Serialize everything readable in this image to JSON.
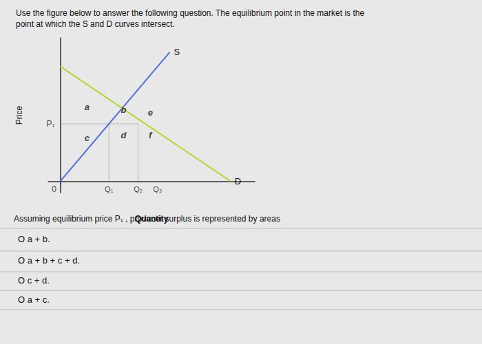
{
  "chart_data": {
    "type": "line",
    "title": [
      "Use the figure below to answer the following question. The equilibrium point in the market is the",
      "point at which the S and D curves intersect."
    ],
    "x_label": "Quantity",
    "y_label": "Price",
    "xlim": [
      -0.5,
      8.0
    ],
    "ylim": [
      -0.8,
      10.0
    ],
    "xticks": [],
    "yticks": [],
    "tick_labels": false,
    "grid": false,
    "series": [
      {
        "name": "S",
        "x": [
          0,
          4.5
        ],
        "values": [
          0,
          9
        ]
      },
      {
        "name": "D",
        "x": [
          0,
          7.0
        ],
        "values": [
          8,
          0
        ]
      }
    ],
    "guides": {
      "line_style": "dotted",
      "segments": [
        {
          "x": [
            0,
            3.2
          ],
          "y": [
            4.0,
            4.0
          ]
        },
        {
          "x": [
            2.0,
            2.0
          ],
          "y": [
            0,
            4.0
          ]
        },
        {
          "x": [
            3.2,
            3.2
          ],
          "y": [
            0,
            4.0
          ]
        }
      ]
    },
    "price_level": {
      "value": 4.0,
      "label": "P₁"
    },
    "quantity_levels": [
      {
        "value": 2.0,
        "label": "Q₁"
      },
      {
        "value": 3.2,
        "label": "Q₂"
      },
      {
        "value": 4.0,
        "label": "Q₃"
      }
    ],
    "origin_label": "0",
    "region_labels": [
      {
        "text": "a",
        "x": 1.1,
        "y": 5.2
      },
      {
        "text": "b",
        "x": 2.6,
        "y": 5.0
      },
      {
        "text": "e",
        "x": 3.7,
        "y": 4.8
      },
      {
        "text": "c",
        "x": 1.1,
        "y": 3.0
      },
      {
        "text": "d",
        "x": 2.6,
        "y": 3.2
      },
      {
        "text": "f",
        "x": 3.7,
        "y": 3.2
      }
    ],
    "question": "Assuming equilibrium price P₁ , producer surplus is represented by areas",
    "options": [
      "O a + b.",
      "O a + b + c + d.",
      "O c + d.",
      "O a + c."
    ],
    "background_color": "#e8e8e8"
  }
}
